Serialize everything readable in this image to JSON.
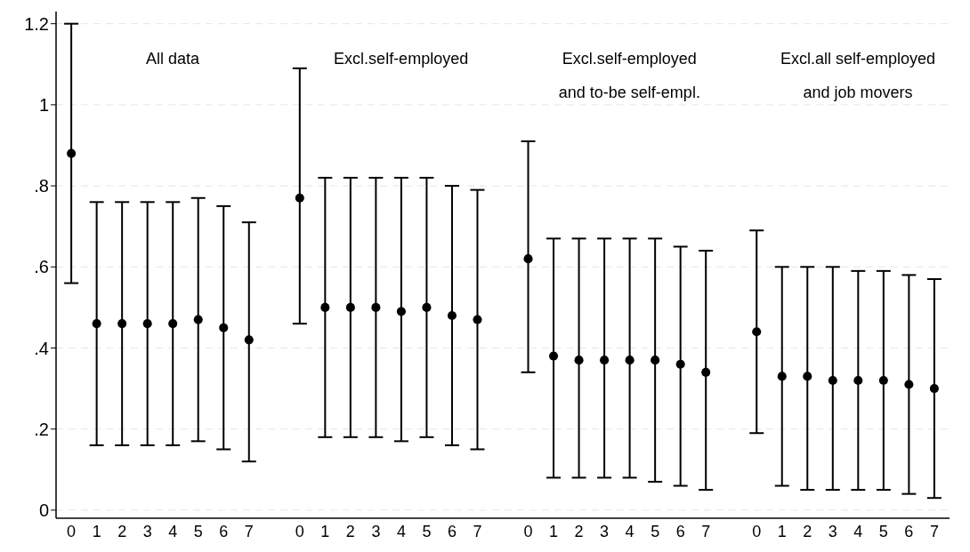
{
  "chart_data": {
    "type": "scatter",
    "categories": [
      "0",
      "1",
      "2",
      "3",
      "4",
      "5",
      "6",
      "7",
      null,
      "0",
      "1",
      "2",
      "3",
      "4",
      "5",
      "6",
      "7",
      null,
      "0",
      "1",
      "2",
      "3",
      "4",
      "5",
      "6",
      "7",
      null,
      "0",
      "1",
      "2",
      "3",
      "4",
      "5",
      "6",
      "7"
    ],
    "series": [
      {
        "color": "#000000",
        "values": [
          0.88,
          0.46,
          0.46,
          0.46,
          0.46,
          0.47,
          0.45,
          0.42,
          null,
          0.77,
          0.5,
          0.5,
          0.5,
          0.49,
          0.5,
          0.48,
          0.47,
          null,
          0.62,
          0.38,
          0.37,
          0.37,
          0.37,
          0.37,
          0.36,
          0.34,
          null,
          0.44,
          0.33,
          0.33,
          0.32,
          0.32,
          0.32,
          0.31,
          0.3
        ],
        "errors": [
          [
            0.56,
            1.2
          ],
          [
            0.16,
            0.76
          ],
          [
            0.16,
            0.76
          ],
          [
            0.16,
            0.76
          ],
          [
            0.16,
            0.76
          ],
          [
            0.17,
            0.77
          ],
          [
            0.15,
            0.75
          ],
          [
            0.12,
            0.71
          ],
          null,
          [
            0.46,
            1.09
          ],
          [
            0.18,
            0.82
          ],
          [
            0.18,
            0.82
          ],
          [
            0.18,
            0.82
          ],
          [
            0.17,
            0.82
          ],
          [
            0.18,
            0.82
          ],
          [
            0.16,
            0.8
          ],
          [
            0.15,
            0.79
          ],
          null,
          [
            0.34,
            0.91
          ],
          [
            0.08,
            0.67
          ],
          [
            0.08,
            0.67
          ],
          [
            0.08,
            0.67
          ],
          [
            0.08,
            0.67
          ],
          [
            0.07,
            0.67
          ],
          [
            0.06,
            0.65
          ],
          [
            0.05,
            0.64
          ],
          null,
          [
            0.19,
            0.69
          ],
          [
            0.06,
            0.6
          ],
          [
            0.05,
            0.6
          ],
          [
            0.05,
            0.6
          ],
          [
            0.05,
            0.59
          ],
          [
            0.05,
            0.59
          ],
          [
            0.04,
            0.58
          ],
          [
            0.03,
            0.57
          ]
        ]
      }
    ],
    "ylim": [
      -0.02,
      1.23
    ],
    "yticks": [
      0,
      {
        "value": 0.2,
        "label": ".2"
      },
      {
        "value": 0.4,
        "label": ".4"
      },
      {
        "value": 0.6,
        "label": ".6"
      },
      {
        "value": 0.8,
        "label": ".8"
      },
      1,
      1.2
    ],
    "annotations": [
      "All data",
      "Excl.self-employed",
      "Excl.self-employed\nand to-be self-empl.",
      "Excl.all self-employed\nand job movers"
    ],
    "grid": "y",
    "marker": "circle",
    "legend": false
  }
}
